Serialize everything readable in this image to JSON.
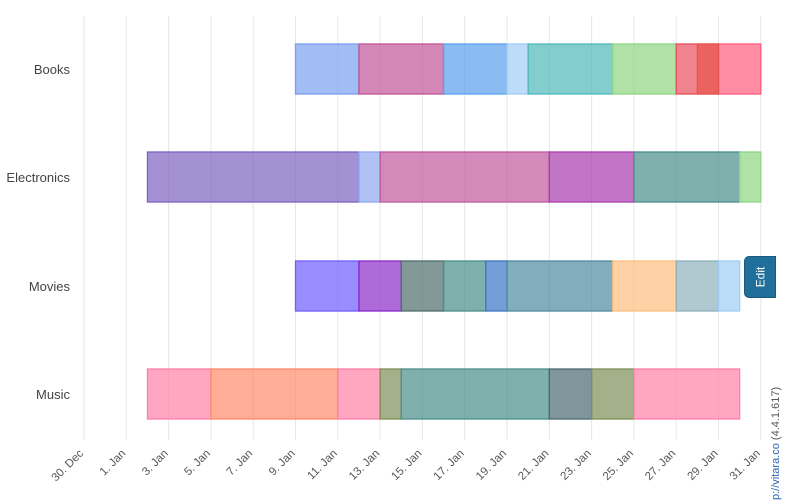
{
  "chart_data": {
    "type": "bar",
    "orientation": "horizontal-timeline",
    "title": "",
    "xlabel": "",
    "ylabel": "",
    "categories": [
      "Books",
      "Electronics",
      "Movies",
      "Music"
    ],
    "x_ticks": [
      "30. Dec",
      "1. Jan",
      "3. Jan",
      "5. Jan",
      "7. Jan",
      "9. Jan",
      "11. Jan",
      "13. Jan",
      "15. Jan",
      "17. Jan",
      "19. Jan",
      "21. Jan",
      "23. Jan",
      "25. Jan",
      "27. Jan",
      "29. Jan",
      "31. Jan"
    ],
    "x_range_days": [
      -2,
      32
    ],
    "x_unit": "day of January (1 = 1. Jan)",
    "grid": true,
    "legend": "none",
    "series_segments": [
      {
        "category": "Books",
        "start": 8,
        "end": 11,
        "color": "#7b9ff0"
      },
      {
        "category": "Books",
        "start": 11,
        "end": 15,
        "color": "#c2559a"
      },
      {
        "category": "Books",
        "start": 15,
        "end": 18,
        "color": "#59a0ee"
      },
      {
        "category": "Books",
        "start": 18,
        "end": 19,
        "color": "#9fcdf5"
      },
      {
        "category": "Books",
        "start": 19,
        "end": 23,
        "color": "#4fb8bb"
      },
      {
        "category": "Books",
        "start": 23,
        "end": 26,
        "color": "#8fd683"
      },
      {
        "category": "Books",
        "start": 26,
        "end": 28,
        "color": "#e84f5e"
      },
      {
        "category": "Books",
        "start": 28,
        "end": 30,
        "color": "#ff5c7c"
      },
      {
        "category": "Books",
        "start": 27,
        "end": 28,
        "color": "#e8554f"
      },
      {
        "category": "Electronics",
        "start": 1,
        "end": 11,
        "color": "#7e62c0"
      },
      {
        "category": "Electronics",
        "start": 11,
        "end": 12,
        "color": "#8fa8f0"
      },
      {
        "category": "Electronics",
        "start": 12,
        "end": 20,
        "color": "#c0589e"
      },
      {
        "category": "Electronics",
        "start": 20,
        "end": 24,
        "color": "#aa3bad"
      },
      {
        "category": "Electronics",
        "start": 24,
        "end": 29,
        "color": "#4a8f8b"
      },
      {
        "category": "Electronics",
        "start": 29,
        "end": 30,
        "color": "#8fd683"
      },
      {
        "category": "Movies",
        "start": 8,
        "end": 11,
        "color": "#6f5cff"
      },
      {
        "category": "Movies",
        "start": 11,
        "end": 13,
        "color": "#8a2bc8"
      },
      {
        "category": "Movies",
        "start": 13,
        "end": 15,
        "color": "#4e6e6c"
      },
      {
        "category": "Movies",
        "start": 15,
        "end": 17,
        "color": "#4a8e8a"
      },
      {
        "category": "Movies",
        "start": 17,
        "end": 18,
        "color": "#3a75c4"
      },
      {
        "category": "Movies",
        "start": 18,
        "end": 23,
        "color": "#4d8aa0"
      },
      {
        "category": "Movies",
        "start": 23,
        "end": 26,
        "color": "#ffbf80"
      },
      {
        "category": "Movies",
        "start": 26,
        "end": 28,
        "color": "#8fb0bc"
      },
      {
        "category": "Movies",
        "start": 28,
        "end": 29,
        "color": "#9ccdf2"
      },
      {
        "category": "Music",
        "start": 1,
        "end": 4,
        "color": "#ff80a8"
      },
      {
        "category": "Music",
        "start": 4,
        "end": 10,
        "color": "#ff8a6a"
      },
      {
        "category": "Music",
        "start": 10,
        "end": 12,
        "color": "#ff80a8"
      },
      {
        "category": "Music",
        "start": 12,
        "end": 13,
        "color": "#7c8f57"
      },
      {
        "category": "Music",
        "start": 13,
        "end": 20,
        "color": "#4a8f8b"
      },
      {
        "category": "Music",
        "start": 20,
        "end": 22,
        "color": "#4b6a72"
      },
      {
        "category": "Music",
        "start": 22,
        "end": 24,
        "color": "#7c8f57"
      },
      {
        "category": "Music",
        "start": 24,
        "end": 29,
        "color": "#ff80a8"
      }
    ]
  },
  "ui": {
    "edit_label": "Edit",
    "credit_text": "p://vitara.co",
    "credit_version": "(4.4.1.617)"
  }
}
